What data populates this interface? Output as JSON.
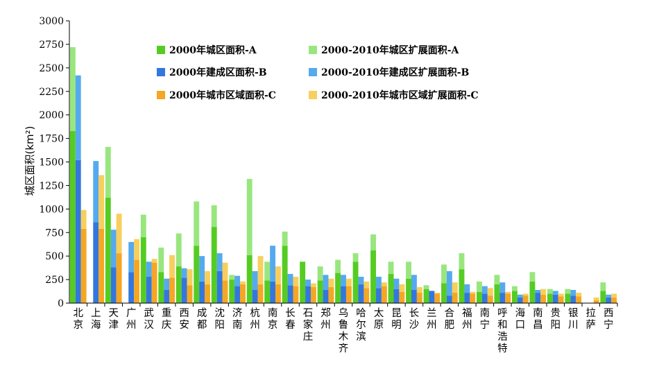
{
  "chart_data": {
    "type": "bar",
    "ylabel": "城区面积(km²)",
    "xlabel": "",
    "ylim": [
      0,
      3000
    ],
    "yticks": [
      0,
      250,
      500,
      750,
      1000,
      1250,
      1500,
      1750,
      2000,
      2250,
      2500,
      2750,
      3000
    ],
    "grid": false,
    "legend_position": "top",
    "stacked_groups": true,
    "categories": [
      "北京",
      "上海",
      "天津",
      "广州",
      "武汉",
      "重庆",
      "西安",
      "成都",
      "沈阳",
      "济南",
      "杭州",
      "南京",
      "长春",
      "石家庄",
      "郑州",
      "乌鲁木齐",
      "哈尔滨",
      "太原",
      "昆明",
      "长沙",
      "兰州",
      "合肥",
      "福州",
      "南宁",
      "呼和浩特",
      "海口",
      "南昌",
      "贵阳",
      "银川",
      "拉萨",
      "西宁"
    ],
    "series": [
      {
        "name": "2000年城区面积-A",
        "group": "A",
        "part": "base",
        "color": "#55cc22",
        "values": [
          1830,
          0,
          1120,
          0,
          700,
          330,
          390,
          610,
          810,
          250,
          510,
          240,
          610,
          440,
          240,
          320,
          440,
          560,
          310,
          260,
          150,
          210,
          360,
          120,
          200,
          130,
          230,
          100,
          100,
          0,
          130
        ]
      },
      {
        "name": "2000-2010年城区扩展面积-A",
        "group": "A",
        "part": "expansion",
        "color": "#99e67f",
        "values": [
          890,
          0,
          540,
          0,
          240,
          260,
          350,
          470,
          230,
          50,
          810,
          200,
          150,
          0,
          150,
          140,
          90,
          170,
          130,
          180,
          40,
          200,
          170,
          110,
          100,
          50,
          100,
          50,
          50,
          0,
          90
        ]
      },
      {
        "name": "2000年建成区面积-B",
        "group": "B",
        "part": "base",
        "color": "#3377dd",
        "values": [
          1520,
          860,
          380,
          330,
          280,
          140,
          270,
          230,
          340,
          180,
          140,
          230,
          190,
          180,
          140,
          180,
          200,
          160,
          150,
          140,
          130,
          80,
          110,
          100,
          110,
          60,
          110,
          90,
          80,
          0,
          60
        ]
      },
      {
        "name": "2000-2010年建成区扩展面积-B",
        "group": "B",
        "part": "expansion",
        "color": "#55aaee",
        "values": [
          900,
          650,
          400,
          320,
          160,
          120,
          100,
          270,
          190,
          110,
          200,
          380,
          120,
          70,
          160,
          120,
          80,
          120,
          110,
          160,
          0,
          260,
          90,
          80,
          110,
          30,
          30,
          40,
          60,
          0,
          30
        ]
      },
      {
        "name": "2000年城市区域面积-C",
        "group": "C",
        "part": "base",
        "color": "#f5a623",
        "values": [
          790,
          790,
          530,
          460,
          430,
          270,
          190,
          200,
          240,
          200,
          200,
          200,
          180,
          170,
          170,
          180,
          160,
          180,
          120,
          110,
          100,
          110,
          100,
          80,
          100,
          80,
          90,
          70,
          70,
          30,
          60
        ]
      },
      {
        "name": "2000-2010年城市区域扩展面积-C",
        "group": "C",
        "part": "expansion",
        "color": "#f8cf5c",
        "values": [
          200,
          570,
          420,
          220,
          40,
          240,
          170,
          140,
          190,
          30,
          300,
          190,
          100,
          40,
          90,
          80,
          70,
          40,
          80,
          60,
          10,
          110,
          20,
          80,
          20,
          20,
          60,
          30,
          40,
          30,
          40
        ]
      }
    ]
  }
}
